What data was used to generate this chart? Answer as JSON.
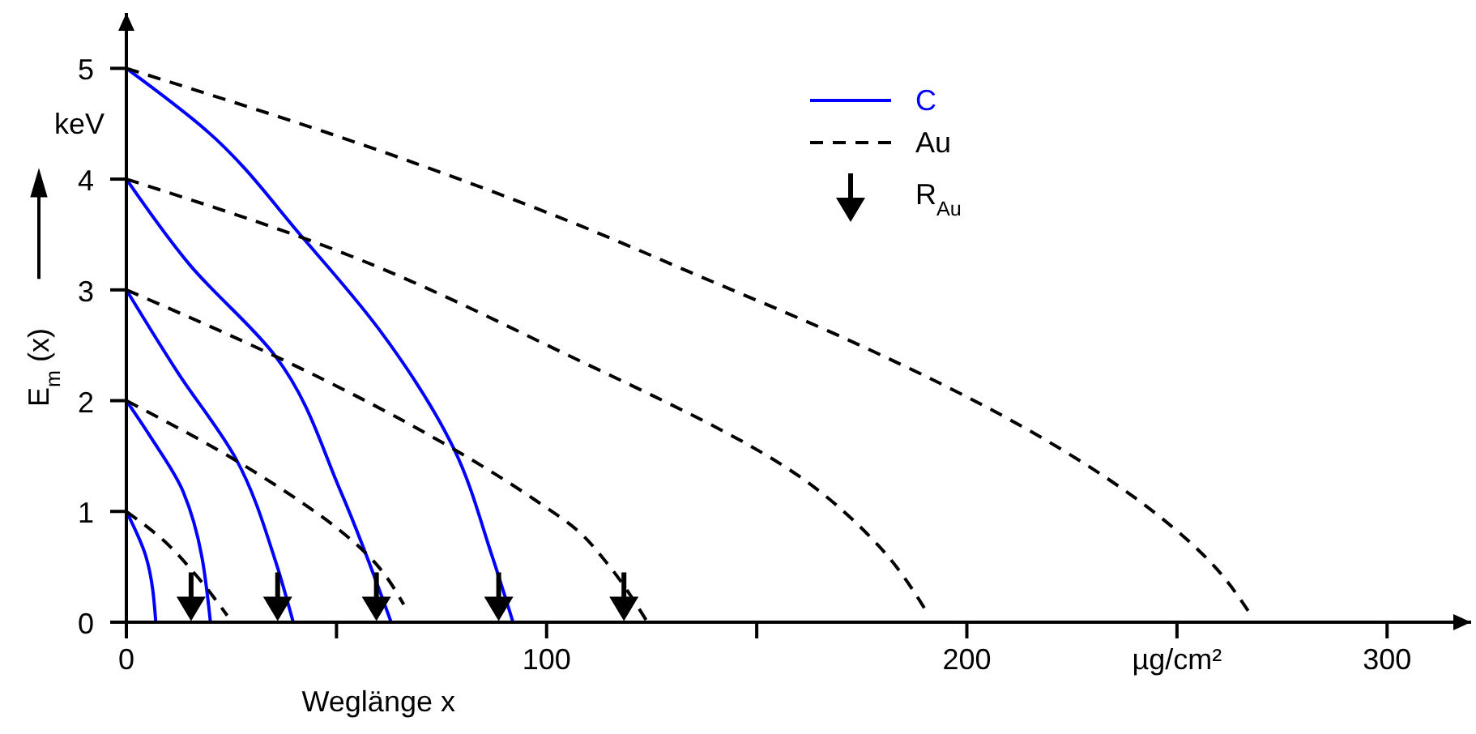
{
  "chart_data": {
    "type": "line",
    "xlabel": "Weglänge  x",
    "ylabel": "E$_{m}$ (x)",
    "annotations": [
      "keV"
    ],
    "xlim": [
      0,
      320
    ],
    "ylim": [
      0,
      5.5
    ],
    "xticks": [
      0,
      {
        "value": 50,
        "label": null
      },
      100,
      {
        "value": 150,
        "label": null
      },
      200,
      {
        "value": 250,
        "label": "µg/cm²"
      },
      300
    ],
    "yticks": [
      0,
      1,
      2,
      3,
      4,
      5
    ],
    "legend": "top",
    "grid": false,
    "series": [
      {
        "name": "C",
        "color": "#0000ff",
        "line_style": "solid",
        "x": [
          0,
          4.6,
          7
        ],
        "values": [
          1,
          0.6,
          0
        ]
      },
      {
        "color": "#0000ff",
        "line_style": "solid",
        "x": [
          0,
          5.8,
          13.5,
          20
        ],
        "values": [
          2,
          1.67,
          1.18,
          0
        ]
      },
      {
        "color": "#0000ff",
        "line_style": "solid",
        "x": [
          0,
          12.3,
          26,
          35.5,
          39.7
        ],
        "values": [
          3,
          2.25,
          1.48,
          0.55,
          0
        ]
      },
      {
        "color": "#0000ff",
        "line_style": "solid",
        "x": [
          0,
          15,
          35.5,
          51,
          63
        ],
        "values": [
          4,
          3.23,
          2.4,
          1.18,
          0
        ]
      },
      {
        "color": "#0000ff",
        "line_style": "solid",
        "x": [
          0,
          19,
          42,
          60,
          78,
          87,
          92
        ],
        "values": [
          5,
          4.44,
          3.47,
          2.65,
          1.56,
          0.6,
          0
        ]
      },
      {
        "name": "Au",
        "color": "#000000",
        "line_style": "dashed",
        "x": [
          0,
          8.5,
          16,
          24
        ],
        "values": [
          1,
          0.75,
          0.45,
          0.06
        ]
      },
      {
        "color": "#000000",
        "line_style": "dashed",
        "x": [
          0,
          27.8,
          60,
          66
        ],
        "values": [
          2,
          1.42,
          0.5,
          0.16
        ]
      },
      {
        "color": "#000000",
        "line_style": "dashed",
        "x": [
          0,
          35.5,
          78,
          97,
          107.6,
          114,
          124
        ],
        "values": [
          3,
          2.4,
          1.56,
          1.11,
          0.82,
          0.55,
          0
        ]
      },
      {
        "color": "#000000",
        "line_style": "dashed",
        "x": [
          0,
          42,
          104,
          161.5,
          179,
          191
        ],
        "values": [
          4,
          3.47,
          2.43,
          1.28,
          0.69,
          0.06
        ]
      },
      {
        "color": "#000000",
        "line_style": "dashed",
        "x": [
          0,
          57,
          106,
          136,
          174,
          213,
          245,
          259,
          267
        ],
        "values": [
          5,
          4.3,
          3.61,
          3.13,
          2.51,
          1.77,
          0.98,
          0.5,
          0.1
        ]
      },
      {
        "name": "R$_{Au}$",
        "type": "scatter",
        "marker": "triangle",
        "color": "#000000",
        "x": [
          15.4,
          36,
          59.5,
          88.6,
          118.4
        ],
        "values": [
          0.23,
          0.23,
          0.23,
          0.23,
          0.23
        ]
      }
    ]
  }
}
